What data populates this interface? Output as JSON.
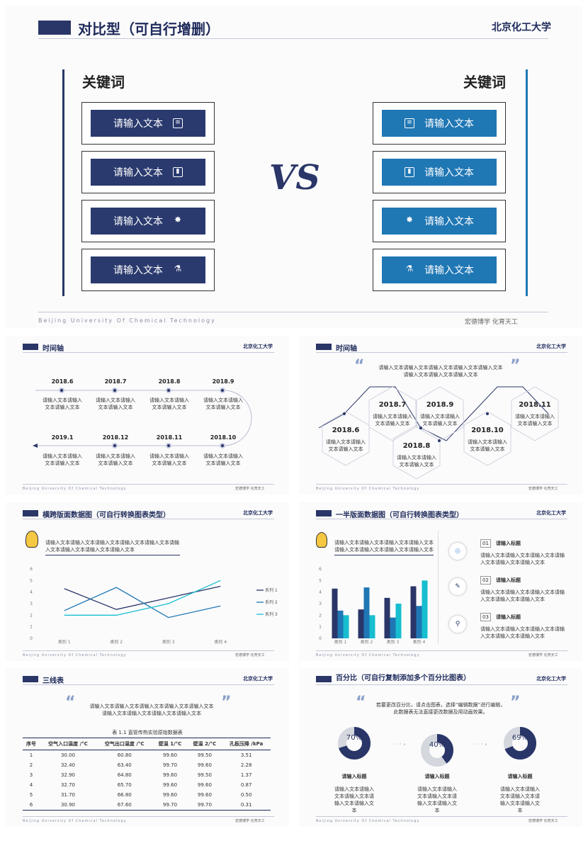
{
  "main": {
    "title": "对比型（可自行增删）",
    "logo": "北京化工大学",
    "left_keyword": "关键词",
    "right_keyword": "关键词",
    "vs": "VS",
    "left_items": [
      "请输入文本",
      "请输入文本",
      "请输入文本",
      "请输入文本"
    ],
    "right_items": [
      "请输入文本",
      "请输入文本",
      "请输入文本",
      "请输入文本"
    ],
    "footer_en": "Beijing University Of Chemical Technology",
    "footer_cn": "宏德博学 化育天工"
  },
  "timeline1": {
    "title": "时间轴",
    "logo": "北京化工大学",
    "top": [
      {
        "date": "2018.6",
        "text": "请输入文本请输入文本请输入文本"
      },
      {
        "date": "2018.7",
        "text": "请输入文本请输入文本请输入文本"
      },
      {
        "date": "2018.8",
        "text": "请输入文本请输入文本请输入文本"
      },
      {
        "date": "2018.9",
        "text": "请输入文本请输入文本请输入文本"
      }
    ],
    "bottom": [
      {
        "date": "2019.1",
        "text": "请输入文本请输入文本请输入文本"
      },
      {
        "date": "2018.12",
        "text": "请输入文本请输入文本请输入文本"
      },
      {
        "date": "2018.11",
        "text": "请输入文本请输入文本请输入文本"
      },
      {
        "date": "2018.10",
        "text": "请输入文本请输入文本请输入文本"
      }
    ],
    "footer_en": "Beijing University Of Chemical Technology",
    "footer_cn": "宏德博学 化育天工"
  },
  "timeline2": {
    "title": "时间轴",
    "logo": "北京化工大学",
    "quote": "请输入文本请输入文本请输入文本请输入文本请输入文本请输入文本请输入文本请输入文本",
    "hexes": [
      {
        "date": "2018.6",
        "text": "请输入文本请输入文本请输入文本"
      },
      {
        "date": "2018.7",
        "text": "请输入文本请输入文本请输入文本"
      },
      {
        "date": "2018.8",
        "text": "请输入文本请输入文本请输入文本"
      },
      {
        "date": "2018.9",
        "text": "请输入文本请输入文本请输入文本"
      },
      {
        "date": "2018.10",
        "text": "请输入文本请输入文本请输入文本"
      },
      {
        "date": "2018.11",
        "text": "请输入文本请输入文本请输入文本"
      }
    ],
    "footer_en": "Beijing University Of Chemical Technology",
    "footer_cn": "宏德博学 化育天工"
  },
  "linechart": {
    "title": "横跨版面数据图（可自行转换图表类型）",
    "logo": "北京化工大学",
    "desc": "请输入文本请输入文本请输入文本请输入文本请输入文本请输入文本请输入文本请输入文本请输入文本",
    "footer_en": "Beijing University Of Chemical Technology",
    "footer_cn": "宏德博学 化育天工"
  },
  "barchart": {
    "title": "一半版面数据图（可自行转换图表类型）",
    "logo": "北京化工大学",
    "desc": "请输入文本请输入文本请输入文本请输入文本请输入文本请输入文本请输入文本请输入文本",
    "items": [
      {
        "num": "01",
        "title": "请输入标题",
        "text": "请输入文本请输入文本请输入文本请输入文本请输入文本请输入文本"
      },
      {
        "num": "02",
        "title": "请输入标题",
        "text": "请输入文本请输入文本请输入文本请输入文本请输入文本请输入文本"
      },
      {
        "num": "03",
        "title": "请输入标题",
        "text": "请输入文本请输入文本请输入文本请输入文本请输入文本请输入文本"
      }
    ],
    "footer_en": "Beijing University Of Chemical Technology",
    "footer_cn": "宏德博学 化育天工"
  },
  "table": {
    "title": "三线表",
    "logo": "北京化工大学",
    "quote": "请输入文本请输入文本请输入文本请输入文本请输入文本请输入文本请输入文本请输入文本请输入文本",
    "caption": "表 1.1 直管传热实验原始数据表",
    "headers": [
      "序号",
      "空气入口温度 /°C",
      "空气出口温度 /°C",
      "壁温 1/°C",
      "壁温 2/°C",
      "孔板压降 /kPa"
    ],
    "rows": [
      [
        "1",
        "30.00",
        "60.80",
        "99.60",
        "99.50",
        "3.51"
      ],
      [
        "2",
        "32.40",
        "63.40",
        "99.70",
        "99.60",
        "2.28"
      ],
      [
        "3",
        "32.90",
        "64.80",
        "99.60",
        "99.50",
        "1.37"
      ],
      [
        "4",
        "32.70",
        "65.70",
        "99.60",
        "99.60",
        "0.87"
      ],
      [
        "5",
        "31.70",
        "66.80",
        "99.60",
        "99.60",
        "0.50"
      ],
      [
        "6",
        "30.90",
        "67.60",
        "99.70",
        "99.70",
        "0.31"
      ]
    ],
    "footer_en": "Beijing University Of Chemical Technology",
    "footer_cn": "宏德博学 化育天工"
  },
  "percent": {
    "title": "百分比（可自行复制添加多个百分比图表）",
    "logo": "北京化工大学",
    "quote": "若要更改百分比，请点击图表，选择“编辑数据”进行编辑，此数据表无法直接更改数据及用动画效果。",
    "donuts": [
      {
        "label": "70%",
        "value": 0.7,
        "title": "请输入标题",
        "text": "请输入文本请输入文本请输入文本请输入文本请输入文本"
      },
      {
        "label": "40%",
        "value": 0.4,
        "title": "请输入标题",
        "text": "请输入文本请输入文本请输入文本请输入文本请输入文本"
      },
      {
        "label": "69%",
        "value": 0.69,
        "title": "请输入标题",
        "text": "请输入文本请输入文本请输入文本请输入文本请输入文本"
      }
    ],
    "footer_en": "Beijing University Of Chemical Technology",
    "footer_cn": "宏德博学 化育天工"
  },
  "chart_data": [
    {
      "type": "line",
      "categories": [
        "类别 1",
        "类别 2",
        "类别 3",
        "类别 4"
      ],
      "ylim": [
        0,
        6
      ],
      "yticks": [
        "0",
        "1",
        "2",
        "3",
        "4",
        "5",
        "6"
      ],
      "series": [
        {
          "name": "系列 1",
          "values": [
            4.3,
            2.5,
            3.5,
            4.5
          ],
          "color": "#2a3668"
        },
        {
          "name": "系列 2",
          "values": [
            2.4,
            4.4,
            1.8,
            2.8
          ],
          "color": "#1f77b4"
        },
        {
          "name": "系列 3",
          "values": [
            2.0,
            2.0,
            3.0,
            5.0
          ],
          "color": "#17becf"
        }
      ]
    },
    {
      "type": "bar",
      "categories": [
        "类别 1",
        "类别 2",
        "类别 3",
        "类别 4"
      ],
      "ylim": [
        0,
        6
      ],
      "yticks": [
        "0",
        "1",
        "2",
        "3",
        "4",
        "5",
        "6"
      ],
      "series": [
        {
          "values": [
            4.3,
            2.5,
            3.5,
            4.5
          ],
          "color": "#2a3668"
        },
        {
          "values": [
            2.4,
            4.4,
            1.8,
            2.8
          ],
          "color": "#1f77b4"
        },
        {
          "values": [
            2.0,
            2.0,
            3.0,
            5.0
          ],
          "color": "#17becf"
        }
      ]
    }
  ]
}
